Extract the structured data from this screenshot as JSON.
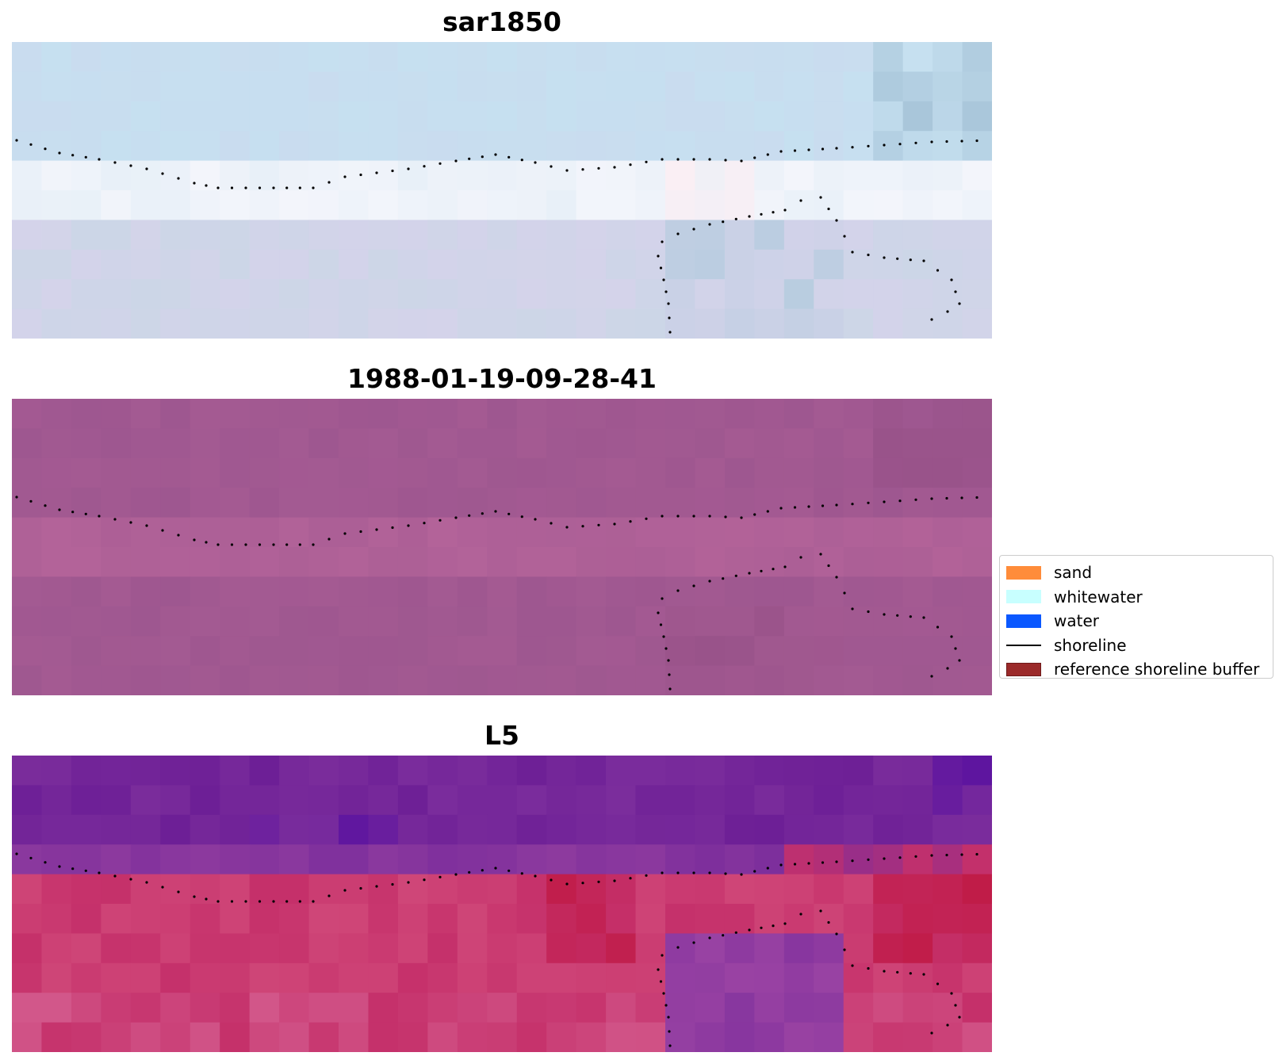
{
  "panels": [
    {
      "title": "sar1850",
      "palette": [
        "#c9dcef",
        "#c6e0f0",
        "#d7e4f2",
        "#e8f0f8",
        "#f3f5fb",
        "#fbeff4",
        "#ccd6e7",
        "#d4d3ea",
        "#b9cde0",
        "#a9c6da"
      ],
      "shade": "light"
    },
    {
      "title": "1988-01-19-09-28-41",
      "palette": [
        "#a45a92",
        "#9e5790",
        "#ac5f96",
        "#b36399",
        "#a25891",
        "#99538a",
        "#b0659a"
      ],
      "shade": "purple"
    },
    {
      "title": "L5",
      "palette": [
        "#7b2d9c",
        "#6d1f96",
        "#5a12a0",
        "#8d3a9e",
        "#c5306a",
        "#cf4678",
        "#b91c4c",
        "#d2578a",
        "#9a43a3",
        "#c01a46"
      ],
      "shade": "l5"
    }
  ],
  "legend": {
    "items": [
      {
        "label": "sand",
        "color": "#ff8c3a",
        "kind": "patch"
      },
      {
        "label": "whitewater",
        "color": "#c8ffff",
        "kind": "patch"
      },
      {
        "label": "water",
        "color": "#0a58ff",
        "kind": "patch"
      },
      {
        "label": "shoreline",
        "color": "#000000",
        "kind": "line"
      },
      {
        "label": "reference shoreline buffer",
        "color": "#9b2a2a",
        "kind": "patch"
      }
    ]
  }
}
